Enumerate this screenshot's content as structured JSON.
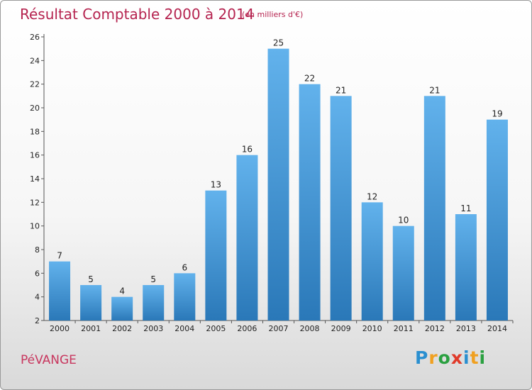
{
  "header": {
    "title": "Résultat Comptable 2000 à 2014",
    "subtitle": "(en milliers d'€)"
  },
  "footer": {
    "commune": "PéVANGE",
    "logo_letters": [
      "P",
      "r",
      "o",
      "x",
      "i",
      "t",
      "i"
    ],
    "logo_colors": [
      "#2a8fd0",
      "#f0a020",
      "#2aa040",
      "#e03a2a",
      "#2a8fd0",
      "#f0a020",
      "#2aa040"
    ]
  },
  "colors": {
    "bar_light": "#62b2ec",
    "bar_dark": "#2a78b8",
    "title": "#b5234f"
  },
  "chart_data": {
    "type": "bar",
    "categories": [
      "2000",
      "2001",
      "2002",
      "2003",
      "2004",
      "2005",
      "2006",
      "2007",
      "2008",
      "2009",
      "2010",
      "2011",
      "2012",
      "2013",
      "2014"
    ],
    "values": [
      7,
      5,
      4,
      5,
      6,
      13,
      16,
      25,
      22,
      21,
      12,
      10,
      21,
      11,
      19
    ],
    "data_labels": [
      "7",
      "5",
      "4",
      "5",
      "6",
      "13",
      "16",
      "25",
      "22",
      "21",
      "12",
      "10",
      "21",
      "11",
      "19"
    ],
    "yticks": [
      2,
      4,
      6,
      8,
      10,
      12,
      14,
      16,
      18,
      20,
      22,
      24,
      26
    ],
    "ytick_labels": [
      "2",
      "4",
      "6",
      "8",
      "10",
      "12",
      "14",
      "16",
      "18",
      "20",
      "22",
      "24",
      "26"
    ],
    "ylim": [
      2,
      26
    ],
    "grid": false,
    "legend": "none"
  }
}
